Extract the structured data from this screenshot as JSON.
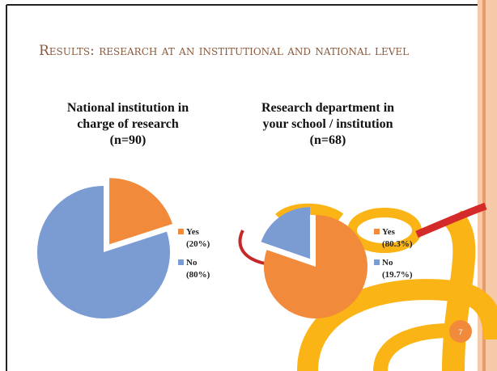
{
  "slide_title": "Results: research at an institutional and national level",
  "page_number": "7",
  "chart_data": [
    {
      "type": "pie",
      "title": "National institution in charge of research (n=90)",
      "categories": [
        "Yes",
        "No"
      ],
      "values": [
        20,
        80
      ],
      "value_labels": [
        "(20%)",
        "(80%)"
      ],
      "colors": [
        "#f28a3c",
        "#7b9bd3"
      ]
    },
    {
      "type": "pie",
      "title": "Research department in your school / institution (n=68)",
      "categories": [
        "Yes",
        "No"
      ],
      "values": [
        80.3,
        19.7
      ],
      "value_labels": [
        "(80.3%)",
        "(19.7%)"
      ],
      "colors": [
        "#f28a3c",
        "#7b9bd3"
      ]
    }
  ]
}
